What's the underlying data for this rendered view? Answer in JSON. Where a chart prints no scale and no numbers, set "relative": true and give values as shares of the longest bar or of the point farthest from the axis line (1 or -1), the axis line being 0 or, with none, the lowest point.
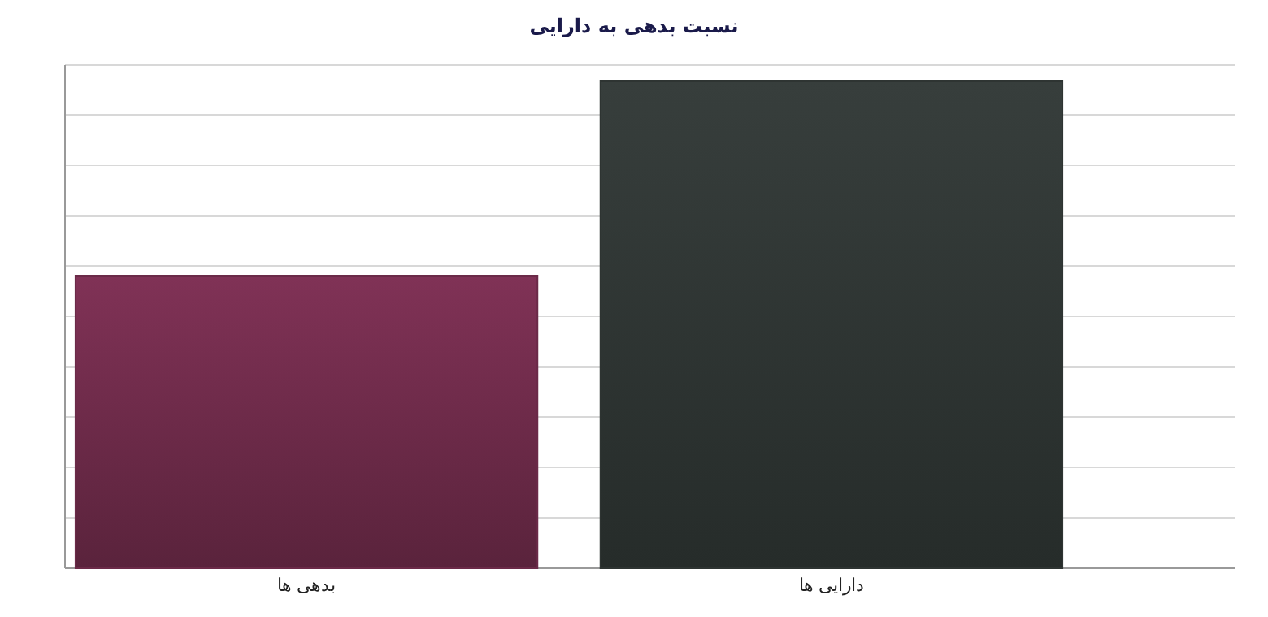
{
  "chart_data": {
    "type": "bar",
    "title": "نسبت بدهی به دارایی",
    "categories": [
      "بدهی ها",
      "دارایی ها"
    ],
    "values": [
      0.6,
      1
    ],
    "colors": [
      "#6b2a48",
      "#2e3432"
    ],
    "relative": true,
    "grid": true
  }
}
